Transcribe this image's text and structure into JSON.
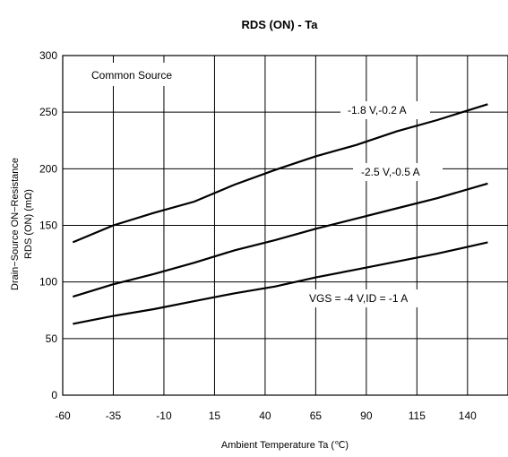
{
  "chart_data": {
    "type": "line",
    "title": "RDS (ON) - Ta",
    "xlabel": "Ambient Temperature  Ta (℃)",
    "ylabel_line1": "Drain−Source ON−Resistance",
    "ylabel_line2": "RDS (ON)   (mΩ)",
    "xlim": [
      -60,
      160
    ],
    "ylim": [
      0,
      300
    ],
    "xticks": [
      -60,
      -35,
      -10,
      15,
      40,
      65,
      90,
      115,
      140
    ],
    "yticks": [
      0,
      50,
      100,
      150,
      200,
      250,
      300
    ],
    "grid": true,
    "annotation": "Common Source",
    "series": [
      {
        "name": "-1.8 V,-0.2 A",
        "x": [
          -55,
          -35,
          -15,
          5,
          25,
          45,
          65,
          85,
          105,
          125,
          150
        ],
        "y": [
          135,
          150,
          161,
          171,
          186,
          199,
          211,
          221,
          233,
          243,
          257
        ]
      },
      {
        "name": "-2.5 V,-0.5 A",
        "x": [
          -55,
          -35,
          -15,
          5,
          25,
          45,
          65,
          85,
          105,
          125,
          150
        ],
        "y": [
          87,
          98,
          107,
          117,
          128,
          137,
          147,
          156,
          165,
          174,
          187
        ]
      },
      {
        "name": "VGS = -4 V,ID = -1 A",
        "x": [
          -55,
          -35,
          -15,
          5,
          25,
          45,
          65,
          85,
          105,
          125,
          150
        ],
        "y": [
          63,
          70,
          76,
          83,
          90,
          96,
          104,
          111,
          118,
          125,
          135
        ]
      }
    ]
  }
}
